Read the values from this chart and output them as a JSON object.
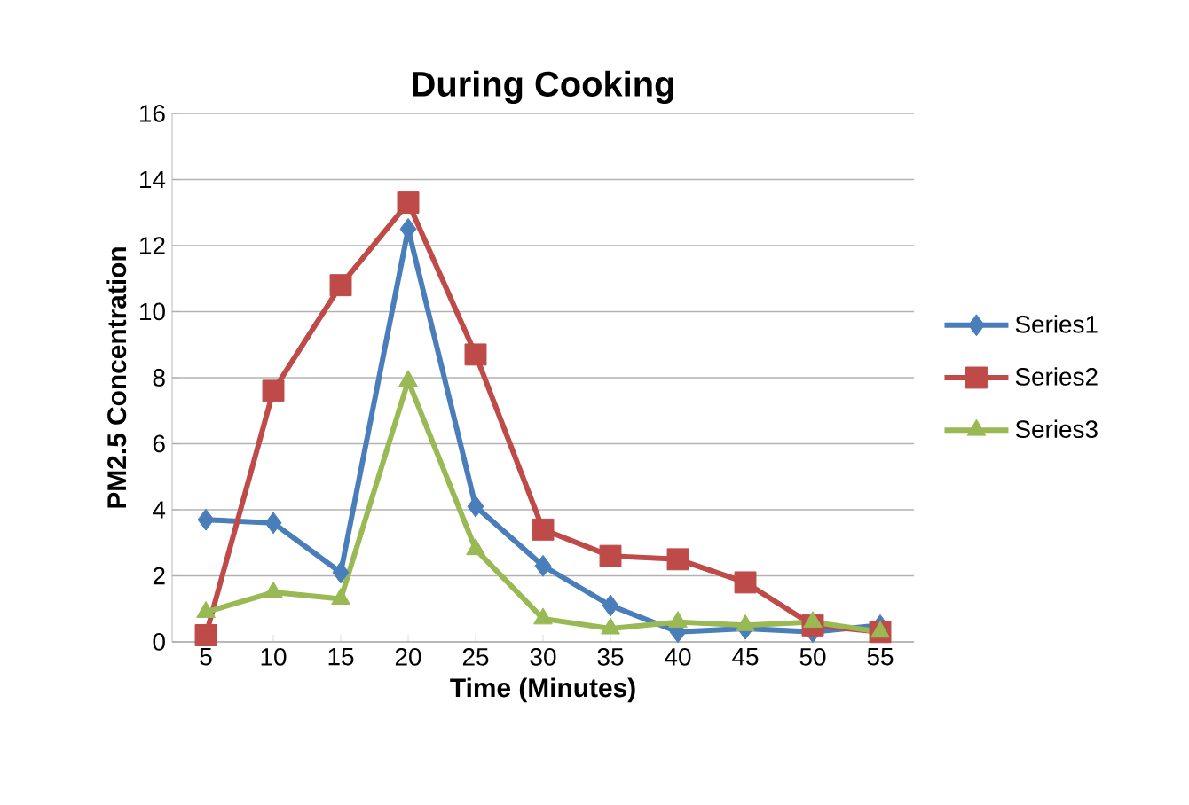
{
  "chart_data": {
    "type": "line",
    "title": "During Cooking",
    "xlabel": "Time (Minutes)",
    "ylabel": "PM2.5 Concentration",
    "categories": [
      "5",
      "10",
      "15",
      "20",
      "25",
      "30",
      "35",
      "40",
      "45",
      "50",
      "55"
    ],
    "series": [
      {
        "name": "Series1",
        "color": "#4a7ebb",
        "marker": "diamond",
        "values": [
          3.7,
          3.6,
          2.1,
          12.5,
          4.1,
          2.3,
          1.1,
          0.3,
          0.4,
          0.3,
          0.5
        ]
      },
      {
        "name": "Series2",
        "color": "#be4b48",
        "marker": "square",
        "values": [
          0.2,
          7.6,
          10.8,
          13.3,
          8.7,
          3.4,
          2.6,
          2.5,
          1.8,
          0.5,
          0.3
        ]
      },
      {
        "name": "Series3",
        "color": "#98b954",
        "marker": "triangle",
        "values": [
          0.9,
          1.5,
          1.3,
          7.9,
          2.8,
          0.7,
          0.4,
          0.6,
          0.5,
          0.6,
          0.3
        ]
      }
    ],
    "ylim": [
      0,
      16
    ],
    "yticks": [
      0,
      2,
      4,
      6,
      8,
      10,
      12,
      14,
      16
    ],
    "grid": "y",
    "legend": "right",
    "line_style": "solid"
  }
}
